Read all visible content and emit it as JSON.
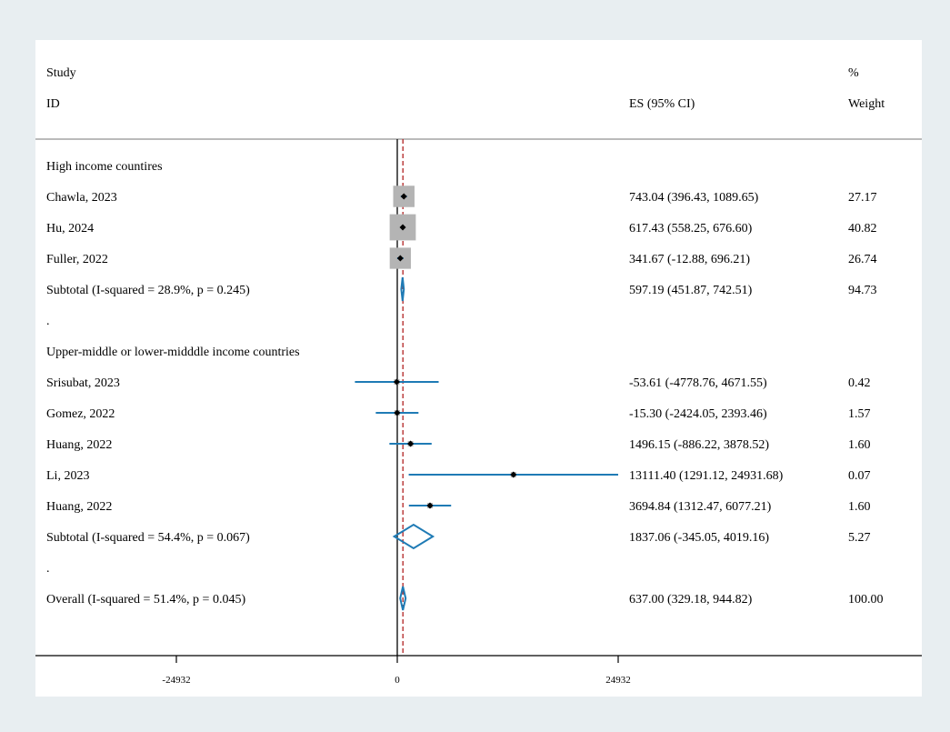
{
  "chart_data": {
    "type": "forest",
    "header": {
      "study": "Study",
      "id": "ID",
      "es": "ES (95% CI)",
      "pct": "%",
      "weight": "Weight"
    },
    "xaxis": {
      "ticks": [
        -24932,
        0,
        24932
      ],
      "tick_labels": [
        "-24932",
        "0",
        "24932"
      ],
      "null_line": 0,
      "overall_line": 637.0
    },
    "rows": [
      {
        "kind": "group",
        "label": "High income countires"
      },
      {
        "kind": "study",
        "label": "Chawla, 2023",
        "es": 743.04,
        "lo": 396.43,
        "hi": 1089.65,
        "weight": 27.17,
        "es_text": "743.04 (396.43, 1089.65)",
        "weight_text": "27.17"
      },
      {
        "kind": "study",
        "label": "Hu, 2024",
        "es": 617.43,
        "lo": 558.25,
        "hi": 676.6,
        "weight": 40.82,
        "es_text": "617.43 (558.25, 676.60)",
        "weight_text": "40.82"
      },
      {
        "kind": "study",
        "label": "Fuller, 2022",
        "es": 341.67,
        "lo": -12.88,
        "hi": 696.21,
        "weight": 26.74,
        "es_text": "341.67 (-12.88, 696.21)",
        "weight_text": "26.74"
      },
      {
        "kind": "subtotal",
        "label": "Subtotal  (I-squared = 28.9%, p = 0.245)",
        "es": 597.19,
        "lo": 451.87,
        "hi": 742.51,
        "weight": 94.73,
        "es_text": "597.19 (451.87, 742.51)",
        "weight_text": "94.73"
      },
      {
        "kind": "spacer",
        "label": "."
      },
      {
        "kind": "group",
        "label": "Upper-middle or lower-midddle income countries"
      },
      {
        "kind": "study",
        "label": "Srisubat, 2023",
        "es": -53.61,
        "lo": -4778.76,
        "hi": 4671.55,
        "weight": 0.42,
        "es_text": "-53.61 (-4778.76, 4671.55)",
        "weight_text": "0.42"
      },
      {
        "kind": "study",
        "label": "Gomez, 2022",
        "es": -15.3,
        "lo": -2424.05,
        "hi": 2393.46,
        "weight": 1.57,
        "es_text": "-15.30 (-2424.05, 2393.46)",
        "weight_text": "1.57"
      },
      {
        "kind": "study",
        "label": "Huang, 2022",
        "es": 1496.15,
        "lo": -886.22,
        "hi": 3878.52,
        "weight": 1.6,
        "es_text": "1496.15 (-886.22, 3878.52)",
        "weight_text": "1.60"
      },
      {
        "kind": "study",
        "label": "Li, 2023",
        "es": 13111.4,
        "lo": 1291.12,
        "hi": 24931.68,
        "weight": 0.07,
        "es_text": "13111.40 (1291.12, 24931.68)",
        "weight_text": "0.07"
      },
      {
        "kind": "study",
        "label": "Huang, 2022",
        "es": 3694.84,
        "lo": 1312.47,
        "hi": 6077.21,
        "weight": 1.6,
        "es_text": "3694.84 (1312.47, 6077.21)",
        "weight_text": "1.60"
      },
      {
        "kind": "subtotal",
        "label": "Subtotal  (I-squared = 54.4%, p = 0.067)",
        "es": 1837.06,
        "lo": -345.05,
        "hi": 4019.16,
        "weight": 5.27,
        "es_text": "1837.06 (-345.05, 4019.16)",
        "weight_text": "5.27"
      },
      {
        "kind": "spacer",
        "label": "."
      },
      {
        "kind": "overall",
        "label": "Overall  (I-squared = 51.4%, p = 0.045)",
        "es": 637.0,
        "lo": 329.18,
        "hi": 944.82,
        "weight": 100.0,
        "es_text": "637.00 (329.18, 944.82)",
        "weight_text": "100.00"
      }
    ],
    "colors": {
      "ci_line": "#1f7bb5",
      "weight_box": "#b4b4b4",
      "ref_line": "#b22222",
      "axis": "#000000",
      "panel": "#ffffff",
      "frame": "#e8eef1"
    }
  }
}
